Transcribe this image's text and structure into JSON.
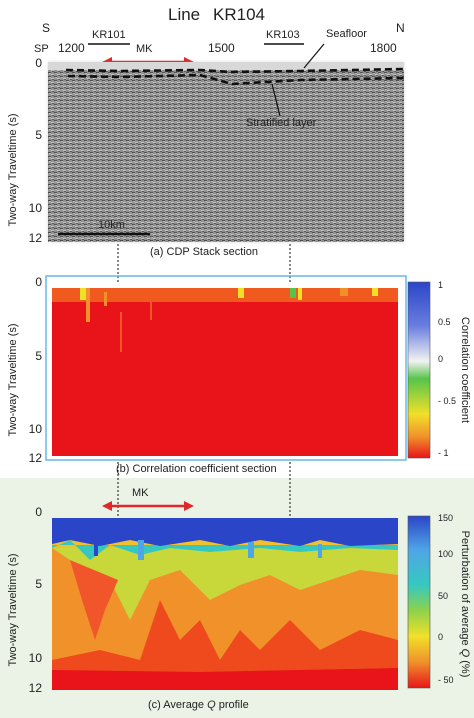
{
  "figure": {
    "title_prefix": "Line",
    "title_line": "KR104",
    "south": "S",
    "north": "N",
    "sp_label": "SP",
    "sp_ticks": [
      "1200",
      "1500",
      "1800"
    ],
    "stations": [
      "KR101",
      "KR103"
    ],
    "mk_label": "MK",
    "scale_label": "10km",
    "annotations": {
      "seafloor": "Seafloor",
      "stratified": "Stratified layer"
    }
  },
  "panels": {
    "a": {
      "caption": "(a) CDP Stack section",
      "ylabel": "Two-way Traveltime (s)",
      "yticks": [
        "0",
        "5",
        "10",
        "12"
      ]
    },
    "b": {
      "caption": "(b) Correlation coefficient section",
      "ylabel": "Two-way Traveltime (s)",
      "yticks": [
        "0",
        "5",
        "10",
        "12"
      ],
      "colorbar_label": "Correlation coefficient",
      "colorbar_ticks": [
        "1",
        "0.5",
        "0",
        "- 0.5",
        "- 1"
      ]
    },
    "c": {
      "caption_pre": "(c) Average ",
      "caption_q": "Q",
      "caption_post": " profile",
      "ylabel": "Two-way Traveltime (s)",
      "yticks": [
        "0",
        "5",
        "10",
        "12"
      ],
      "colorbar_label_pre": "Perturbation of average ",
      "colorbar_label_q": "Q",
      "colorbar_label_post": " (%)",
      "colorbar_ticks": [
        "150",
        "100",
        "50",
        "0",
        "- 50"
      ]
    }
  },
  "colors": {
    "mk_arrow": "#e0282a",
    "panel_b_frame": "#5ab4e6",
    "panel_c_bg": "#eaf3e6"
  }
}
